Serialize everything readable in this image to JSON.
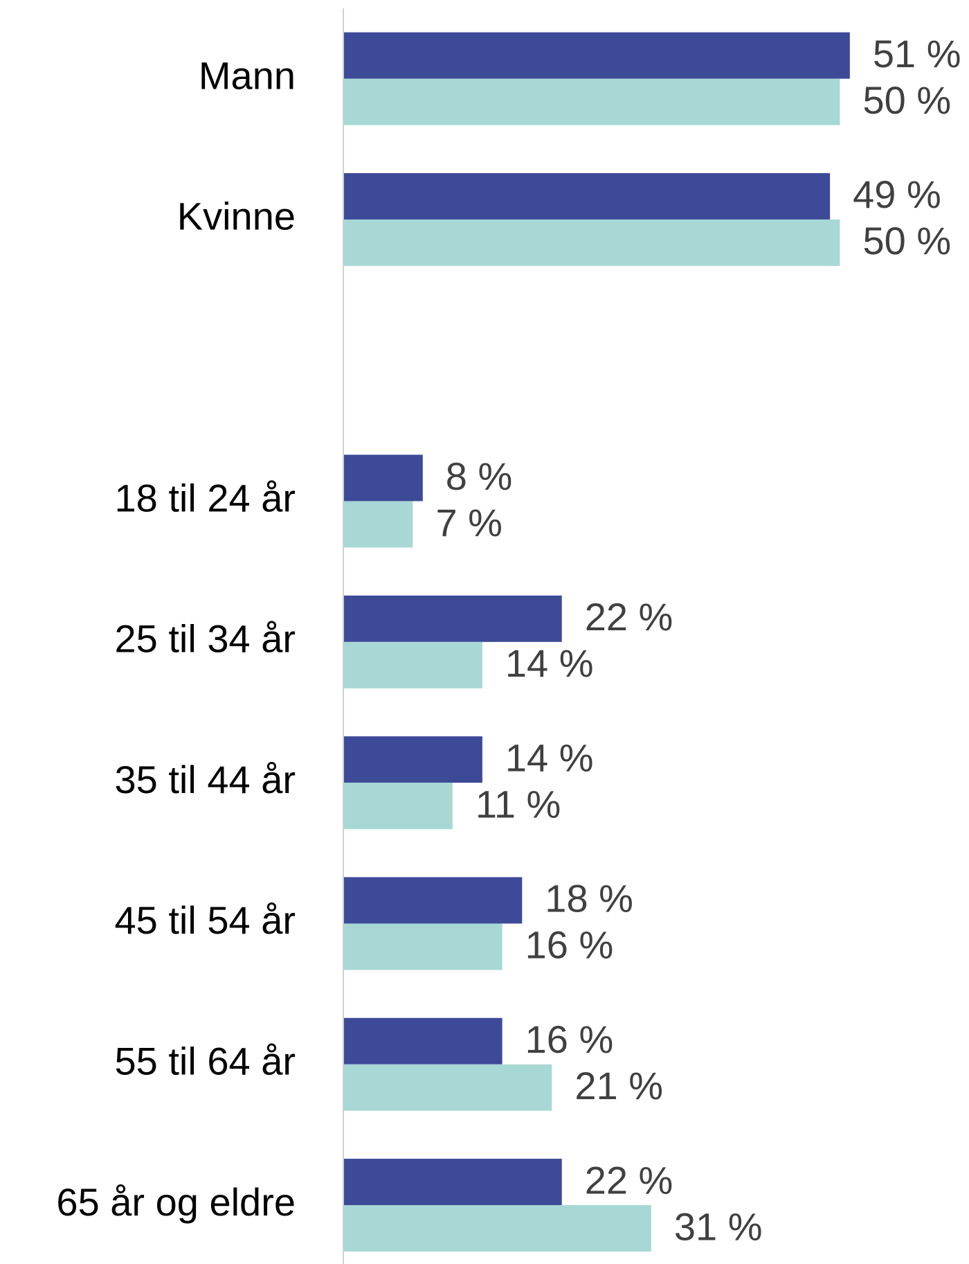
{
  "chart_data": {
    "type": "bar",
    "orientation": "horizontal",
    "categories": [
      "Mann",
      "Kvinne",
      null,
      "18 til 24 år",
      "25 til 34 år",
      "35 til 44 år",
      "45 til 54 år",
      "55 til 64 år",
      "65 år og eldre"
    ],
    "series": [
      {
        "color": "#3d4a98",
        "values": [
          51,
          49,
          null,
          8,
          22,
          14,
          18,
          16,
          22
        ],
        "value_labels": [
          "51 %",
          "49 %",
          null,
          "8 %",
          "22 %",
          "14 %",
          "18 %",
          "16 %",
          "22 %"
        ]
      },
      {
        "color": "#a8d8d5",
        "values": [
          50,
          50,
          null,
          7,
          14,
          11,
          16,
          21,
          31
        ],
        "value_labels": [
          "50 %",
          "50 %",
          null,
          "7 %",
          "14 %",
          "11 %",
          "16 %",
          "21 %",
          "31 %"
        ]
      }
    ],
    "xlim": [
      0,
      60
    ]
  }
}
